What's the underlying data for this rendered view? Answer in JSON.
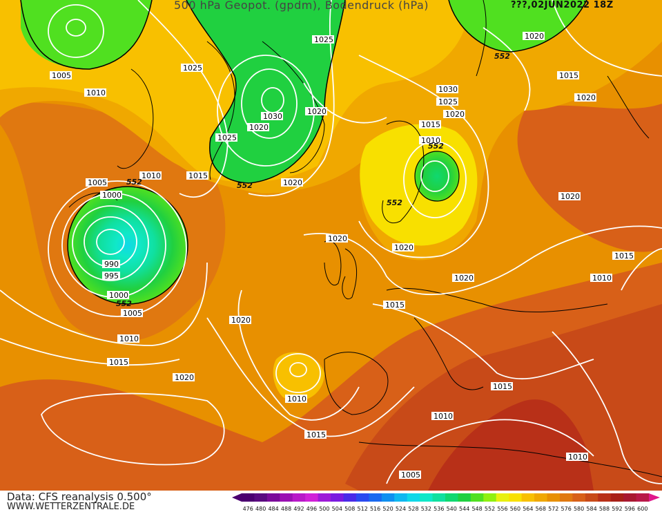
{
  "header": {
    "title": "500 hPa Geopot. (gpdm), Bodendruck (hPa)",
    "date": "???,02JUN2022  18Z"
  },
  "footer": {
    "source": "Data: CFS reanalysis 0.500°",
    "url": "WWW.WETTERZENTRALE.DE"
  },
  "legend": {
    "values": [
      "476",
      "480",
      "484",
      "488",
      "492",
      "496",
      "500",
      "504",
      "508",
      "512",
      "516",
      "520",
      "524",
      "528",
      "532",
      "536",
      "540",
      "544",
      "548",
      "552",
      "556",
      "560",
      "564",
      "568",
      "572",
      "576",
      "580",
      "584",
      "588",
      "592",
      "596",
      "600"
    ],
    "colors": [
      "#4b0070",
      "#5a0a80",
      "#7a0a9a",
      "#9a10b2",
      "#b818c8",
      "#d020d8",
      "#9d1ad8",
      "#7a1ae0",
      "#4a2ae8",
      "#2a4af0",
      "#1a6af0",
      "#1090f0",
      "#10b8f0",
      "#10d8e8",
      "#10e8c8",
      "#10e0a0",
      "#10d870",
      "#20d040",
      "#50e020",
      "#90f010",
      "#e8f010",
      "#f8e000",
      "#f8c000",
      "#f0a800",
      "#e89000",
      "#e07810",
      "#d86018",
      "#c84a18",
      "#b83018",
      "#a82018",
      "#a81830",
      "#b81848"
    ],
    "pink_arrow": "#e0188c"
  },
  "contours": {
    "geopotential_label": "552",
    "pressure_labels": [
      "1005",
      "1010",
      "1025",
      "1020",
      "1015",
      "1030",
      "1000",
      "990",
      "995"
    ]
  }
}
